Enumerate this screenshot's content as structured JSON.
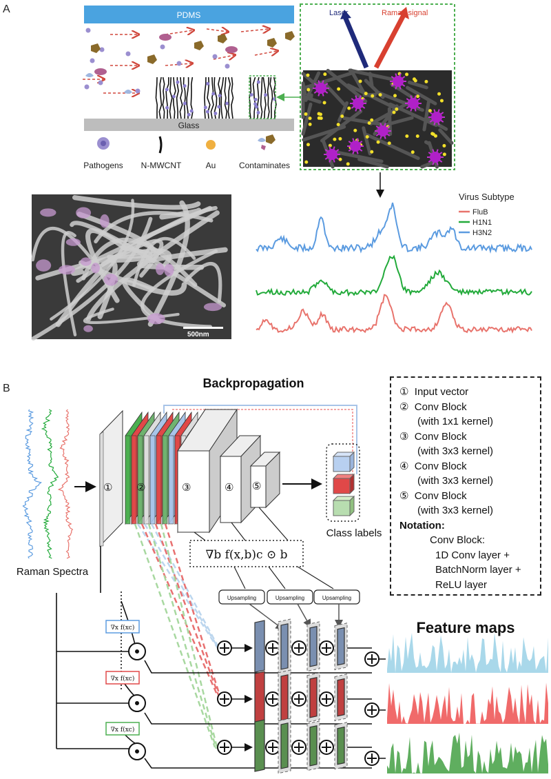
{
  "panel_a": {
    "label": "A",
    "pdms": "PDMS",
    "glass": "Glass",
    "legend": [
      "Pathogens",
      "N-MWCNT",
      "Au",
      "Contaminates"
    ],
    "laser": "Laser",
    "raman_signal": "Raman signal",
    "sem_scale": "500nm",
    "virus_subtype_title": "Virus Subtype",
    "subtypes": [
      {
        "name": "FluB",
        "color": "#e8736c"
      },
      {
        "name": "H1N1",
        "color": "#22aa3a"
      },
      {
        "name": "H3N2",
        "color": "#5b9be0"
      }
    ]
  },
  "panel_b": {
    "label": "B",
    "backprop": "Backpropagation",
    "raman_spectra": "Raman Spectra",
    "class_labels": "Class labels",
    "feature_maps": "Feature maps",
    "gradient_expr": "∇b f(x,b)c ⊙ b",
    "upsampling": "Upsampling",
    "block_numbers": [
      "①",
      "②",
      "③",
      "④",
      "⑤"
    ],
    "grad_labels": [
      "∇x f(xc)",
      "∇x f(xc)",
      "∇x f(xc)"
    ],
    "legend_items": [
      {
        "num": "①",
        "text": "Input vector"
      },
      {
        "num": "②",
        "text": "Conv Block",
        "sub": "(with 1x1 kernel)"
      },
      {
        "num": "③",
        "text": "Conv Block",
        "sub": "(with 3x3 kernel)"
      },
      {
        "num": "④",
        "text": "Conv Block",
        "sub": "(with 3x3 kernel)"
      },
      {
        "num": "⑤",
        "text": "Conv Block",
        "sub": "(with 3x3 kernel)"
      }
    ],
    "notation_title": "Notation:",
    "notation_lines": [
      "Conv Block:",
      "1D Conv layer +",
      "BatchNorm layer +",
      "ReLU layer"
    ]
  },
  "colors": {
    "blue": "#5b9be0",
    "green": "#22aa3a",
    "red": "#e8736c",
    "pdms": "#4aa3e0",
    "glass": "#bdbdbd",
    "feature_blue": "#a9d8ea",
    "feature_red": "#f06a6a",
    "feature_green": "#5fae5f"
  }
}
